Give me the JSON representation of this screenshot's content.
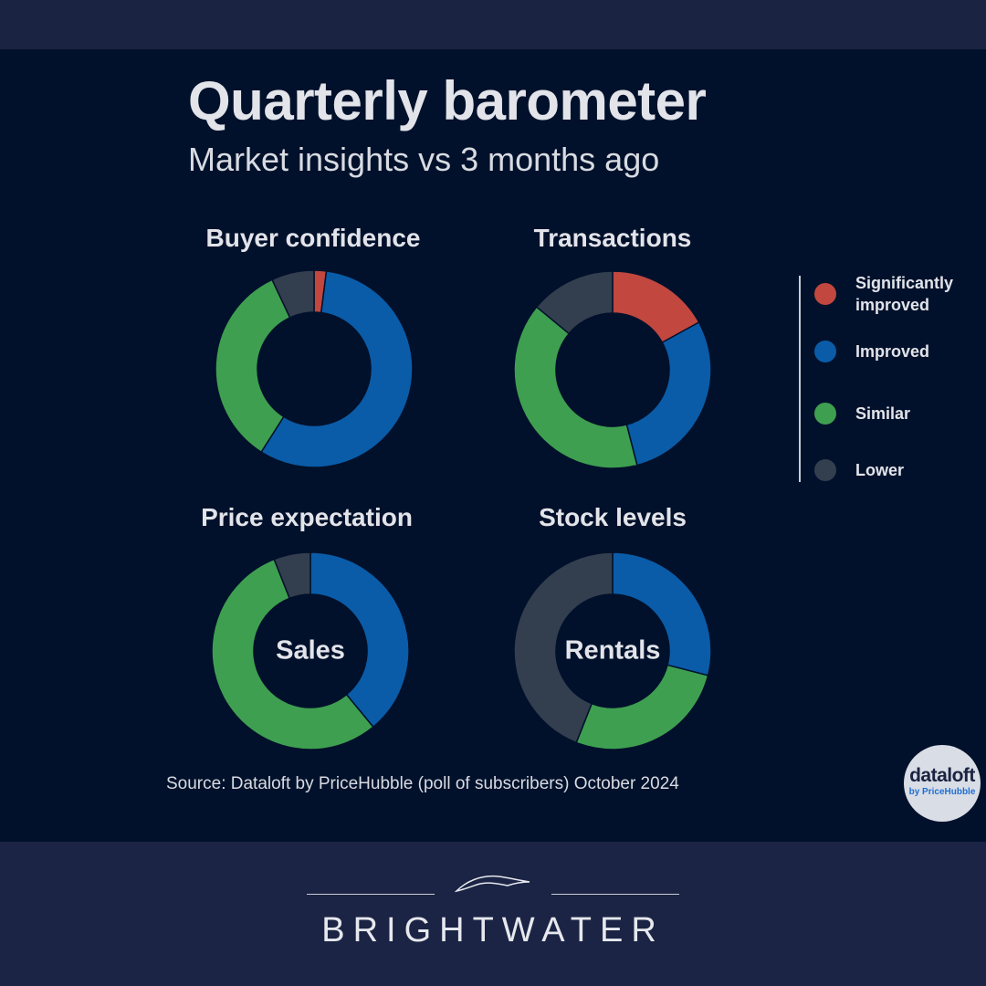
{
  "header": {
    "title": "Quarterly barometer",
    "subtitle": "Market insights vs 3 months ago"
  },
  "colors": {
    "Significantly improved": "#c1473f",
    "Improved": "#0a5ca8",
    "Similar": "#3e9f50",
    "Lower": "#333e4f",
    "background": "#02112b"
  },
  "legend": [
    "Significantly improved",
    "Improved",
    "Similar",
    "Lower"
  ],
  "chart_data": [
    {
      "type": "pie",
      "variant": "donut",
      "title": "Buyer confidence",
      "categories": [
        "Significantly improved",
        "Improved",
        "Similar",
        "Lower"
      ],
      "values": [
        2,
        57,
        34,
        7
      ]
    },
    {
      "type": "pie",
      "variant": "donut",
      "title": "Transactions",
      "categories": [
        "Significantly improved",
        "Improved",
        "Similar",
        "Lower"
      ],
      "values": [
        17,
        29,
        40,
        14
      ]
    },
    {
      "type": "pie",
      "variant": "donut",
      "title": "Price expectation",
      "center_label": "Sales",
      "categories": [
        "Significantly improved",
        "Improved",
        "Similar",
        "Lower"
      ],
      "values": [
        0,
        39,
        55,
        6
      ]
    },
    {
      "type": "pie",
      "variant": "donut",
      "title": "Stock levels",
      "center_label": "Rentals",
      "categories": [
        "Significantly improved",
        "Improved",
        "Similar",
        "Lower"
      ],
      "values": [
        0,
        29,
        27,
        44
      ]
    }
  ],
  "source": "Source: Dataloft by PriceHubble (poll of subscribers) October 2024",
  "badge": {
    "line1": "dataloft",
    "line2": "by PriceHubble"
  },
  "brand": "BRIGHTWATER"
}
